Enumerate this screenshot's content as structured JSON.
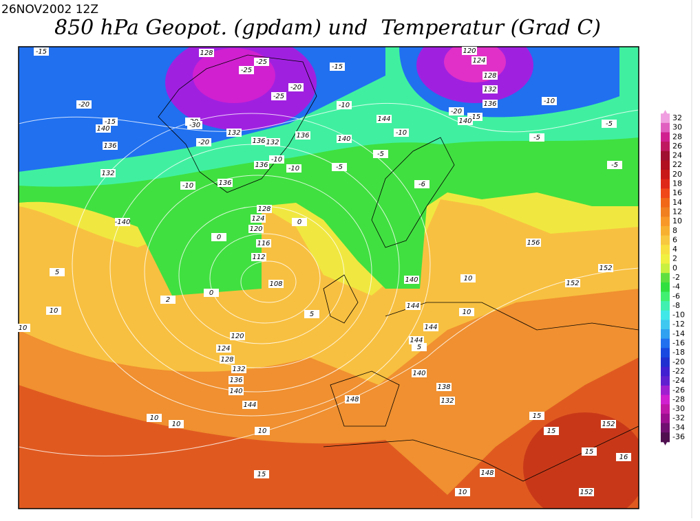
{
  "header": {
    "date": "26NOV2002 12Z",
    "title": "850 hPa Geopot. (gpdam) und  Temperatur (Grad C)"
  },
  "colorbar": {
    "ticks": [
      32,
      30,
      28,
      26,
      24,
      22,
      20,
      18,
      16,
      14,
      12,
      10,
      8,
      6,
      4,
      2,
      0,
      -2,
      -4,
      -6,
      -8,
      -10,
      -12,
      -14,
      -16,
      -18,
      -20,
      -22,
      -24,
      -26,
      -28,
      -30,
      -32,
      -34,
      -36
    ],
    "colors": [
      "#f0a0e0",
      "#e060c0",
      "#d02090",
      "#c01860",
      "#a01030",
      "#b01020",
      "#c81818",
      "#e02818",
      "#f04818",
      "#f06818",
      "#f08020",
      "#f89828",
      "#f8b030",
      "#f8c840",
      "#f8e040",
      "#f0f040",
      "#c8f040",
      "#60e040",
      "#30e040",
      "#40f070",
      "#40f0b0",
      "#40e8e8",
      "#40c8f0",
      "#30a0f0",
      "#2070f0",
      "#1848e0",
      "#2030d0",
      "#4020d0",
      "#6020d0",
      "#a020d0",
      "#d020d0",
      "#c018a8",
      "#9c1090",
      "#701070",
      "#501050"
    ]
  },
  "map": {
    "contour_labels": [
      "-15",
      "128",
      "-25",
      "-15",
      "120",
      "-25",
      "-20",
      "124",
      "128",
      "-20",
      "-15",
      "140",
      "-20",
      "-25",
      "-10",
      "144",
      "132",
      "136",
      "-10",
      "-20",
      "-15",
      "140",
      "-30",
      "132",
      "-20",
      "136",
      "140",
      "-5",
      "136",
      "-5",
      "132",
      "-10",
      "136",
      "-10",
      "-5",
      "136",
      "-5",
      "-10",
      "132",
      "-5",
      "-6",
      "136",
      "-10",
      "-140",
      "128",
      "124",
      "120",
      "116",
      "112",
      "108",
      "0",
      "2",
      "0",
      "140",
      "144",
      "10",
      "10",
      "5",
      "10",
      "152",
      "152",
      "156",
      "144",
      "144",
      "120",
      "124",
      "128",
      "132",
      "136",
      "140",
      "144",
      "140",
      "138",
      "132",
      "148",
      "10",
      "10",
      "10",
      "5",
      "15",
      "15",
      "15",
      "16",
      "152",
      "148",
      "152",
      "10",
      "5",
      "0",
      "15",
      "10"
    ]
  }
}
